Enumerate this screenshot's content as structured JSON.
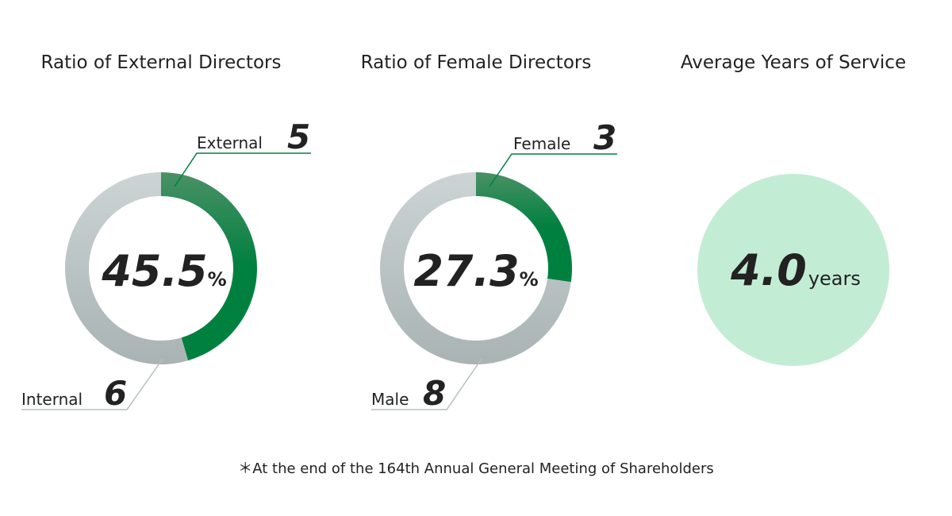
{
  "chart_data": [
    {
      "type": "pie",
      "title": "Ratio of External Directors",
      "center_value": "45.5",
      "center_unit": "%",
      "slices": [
        {
          "label": "External",
          "value": 5,
          "color": "#00803f"
        },
        {
          "label": "Internal",
          "value": 6,
          "color": "#b5bfc0"
        }
      ]
    },
    {
      "type": "pie",
      "title": "Ratio of Female Directors",
      "center_value": "27.3",
      "center_unit": "%",
      "slices": [
        {
          "label": "Female",
          "value": 3,
          "color": "#00803f"
        },
        {
          "label": "Male",
          "value": 8,
          "color": "#b5bfc0"
        }
      ]
    },
    {
      "type": "table",
      "title": "Average Years of Service",
      "value": "4.0",
      "unit": "years",
      "color": "#c3ecd4"
    }
  ],
  "footnote": "＊At the end of the 164th Annual General Meeting of Shareholders"
}
